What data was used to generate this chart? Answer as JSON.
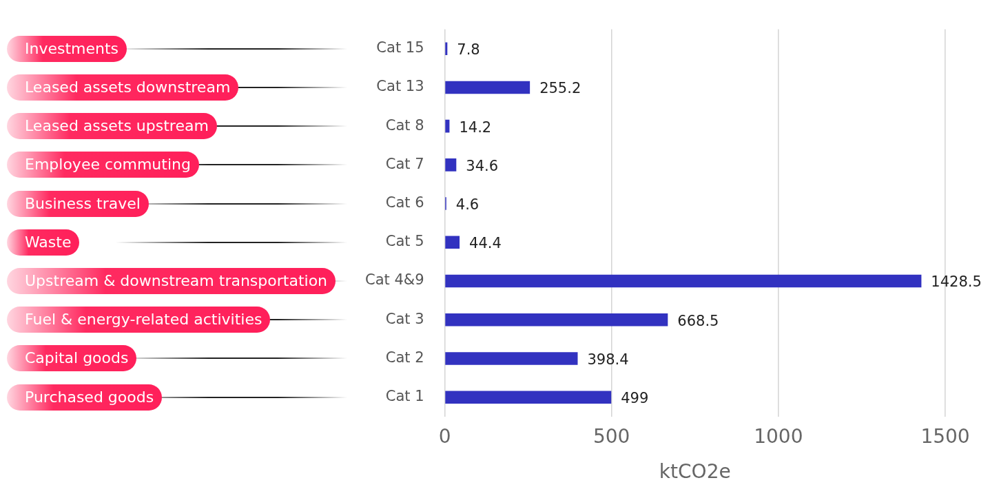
{
  "chart_data": {
    "type": "bar",
    "orientation": "horizontal",
    "xlabel": "ktCO2e",
    "categories": [
      "Cat 15",
      "Cat 13",
      "Cat 8",
      "Cat 7",
      "Cat 6",
      "Cat 5",
      "Cat 4&9",
      "Cat 3",
      "Cat 2",
      "Cat 1"
    ],
    "values": [
      7.8,
      255.2,
      14.2,
      34.6,
      4.6,
      44.4,
      1428.5,
      668.5,
      398.4,
      499
    ],
    "color": "#3232c0",
    "xlim": [
      0,
      1500
    ],
    "xticks": [
      0,
      500,
      1000,
      1500
    ],
    "grid": "x",
    "data_labels": true,
    "annotations": [
      "Investments",
      "Leased assets downstream",
      "Leased assets upstream",
      "Employee commuting",
      "Business travel",
      "Waste",
      "Upstream & downstream transportation",
      "Fuel & energy-related activities",
      "Capital goods",
      "Purchased goods"
    ]
  }
}
